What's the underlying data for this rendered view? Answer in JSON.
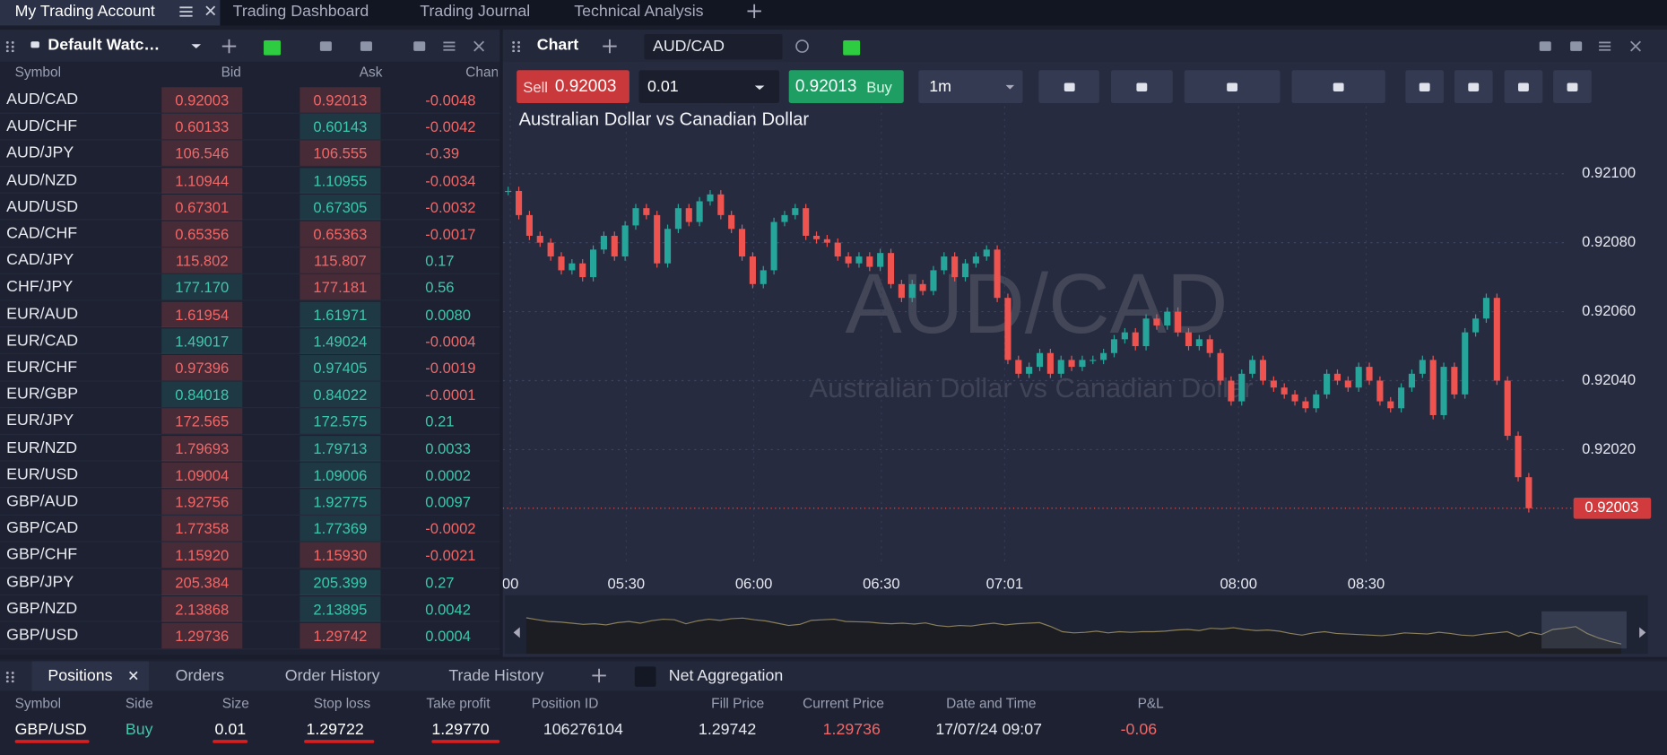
{
  "top_tabs": [
    "My Trading Account",
    "Trading Dashboard",
    "Trading Journal",
    "Technical Analysis"
  ],
  "watchlist": {
    "title": "Default Watc…",
    "columns": [
      "Symbol",
      "Bid",
      "Ask",
      "Change"
    ],
    "rows": [
      {
        "symbol": "AUD/CAD",
        "bid": "0.92003",
        "ask": "0.92013",
        "change": "-0.0048",
        "bid_up": false,
        "ask_up": false
      },
      {
        "symbol": "AUD/CHF",
        "bid": "0.60133",
        "ask": "0.60143",
        "change": "-0.0042",
        "bid_up": false,
        "ask_up": true
      },
      {
        "symbol": "AUD/JPY",
        "bid": "106.546",
        "ask": "106.555",
        "change": "-0.39",
        "bid_up": false,
        "ask_up": false
      },
      {
        "symbol": "AUD/NZD",
        "bid": "1.10944",
        "ask": "1.10955",
        "change": "-0.0034",
        "bid_up": false,
        "ask_up": true
      },
      {
        "symbol": "AUD/USD",
        "bid": "0.67301",
        "ask": "0.67305",
        "change": "-0.0032",
        "bid_up": false,
        "ask_up": true
      },
      {
        "symbol": "CAD/CHF",
        "bid": "0.65356",
        "ask": "0.65363",
        "change": "-0.0017",
        "bid_up": false,
        "ask_up": false
      },
      {
        "symbol": "CAD/JPY",
        "bid": "115.802",
        "ask": "115.807",
        "change": "0.17",
        "bid_up": false,
        "ask_up": false
      },
      {
        "symbol": "CHF/JPY",
        "bid": "177.170",
        "ask": "177.181",
        "change": "0.56",
        "bid_up": true,
        "ask_up": false
      },
      {
        "symbol": "EUR/AUD",
        "bid": "1.61954",
        "ask": "1.61971",
        "change": "0.0080",
        "bid_up": false,
        "ask_up": true
      },
      {
        "symbol": "EUR/CAD",
        "bid": "1.49017",
        "ask": "1.49024",
        "change": "-0.0004",
        "bid_up": true,
        "ask_up": true
      },
      {
        "symbol": "EUR/CHF",
        "bid": "0.97396",
        "ask": "0.97405",
        "change": "-0.0019",
        "bid_up": false,
        "ask_up": true
      },
      {
        "symbol": "EUR/GBP",
        "bid": "0.84018",
        "ask": "0.84022",
        "change": "-0.0001",
        "bid_up": true,
        "ask_up": true
      },
      {
        "symbol": "EUR/JPY",
        "bid": "172.565",
        "ask": "172.575",
        "change": "0.21",
        "bid_up": false,
        "ask_up": true
      },
      {
        "symbol": "EUR/NZD",
        "bid": "1.79693",
        "ask": "1.79713",
        "change": "0.0033",
        "bid_up": false,
        "ask_up": true
      },
      {
        "symbol": "EUR/USD",
        "bid": "1.09004",
        "ask": "1.09006",
        "change": "0.0002",
        "bid_up": false,
        "ask_up": true
      },
      {
        "symbol": "GBP/AUD",
        "bid": "1.92756",
        "ask": "1.92775",
        "change": "0.0097",
        "bid_up": false,
        "ask_up": true
      },
      {
        "symbol": "GBP/CAD",
        "bid": "1.77358",
        "ask": "1.77369",
        "change": "-0.0002",
        "bid_up": false,
        "ask_up": true
      },
      {
        "symbol": "GBP/CHF",
        "bid": "1.15920",
        "ask": "1.15930",
        "change": "-0.0021",
        "bid_up": false,
        "ask_up": false
      },
      {
        "symbol": "GBP/JPY",
        "bid": "205.384",
        "ask": "205.399",
        "change": "0.27",
        "bid_up": false,
        "ask_up": true
      },
      {
        "symbol": "GBP/NZD",
        "bid": "2.13868",
        "ask": "2.13895",
        "change": "0.0042",
        "bid_up": false,
        "ask_up": true
      },
      {
        "symbol": "GBP/USD",
        "bid": "1.29736",
        "ask": "1.29742",
        "change": "0.0004",
        "bid_up": false,
        "ask_up": false
      }
    ]
  },
  "chart": {
    "panel_title": "Chart",
    "symbol": "AUD/CAD",
    "sell_label": "Sell",
    "sell_price": "0.92003",
    "lot": "0.01",
    "buy_price": "0.92013",
    "buy_label": "Buy",
    "timeframe": "1m",
    "title": "Australian Dollar vs Canadian Dollar",
    "ylim": [
      0.91987,
      0.92118
    ],
    "yticks": [
      {
        "value": 0.921,
        "label": "0.92100"
      },
      {
        "value": 0.9208,
        "label": "0.92080"
      },
      {
        "value": 0.9206,
        "label": "0.92060"
      },
      {
        "value": 0.9204,
        "label": "0.92040"
      },
      {
        "value": 0.9202,
        "label": "0.92020"
      }
    ],
    "current_price": {
      "value": 0.92003,
      "label": "0.92003"
    },
    "time_labels": [
      "00",
      "05:30",
      "06:00",
      "06:30",
      "07:01",
      "08:00",
      "08:30"
    ],
    "closes": [
      0.92095,
      0.92088,
      0.92082,
      0.9208,
      0.92076,
      0.92072,
      0.92074,
      0.9207,
      0.92078,
      0.92082,
      0.92076,
      0.92085,
      0.9209,
      0.92088,
      0.92074,
      0.92084,
      0.9209,
      0.92086,
      0.92092,
      0.92094,
      0.92088,
      0.92084,
      0.92076,
      0.92068,
      0.92072,
      0.92086,
      0.92088,
      0.9209,
      0.92082,
      0.92081,
      0.9208,
      0.92076,
      0.92074,
      0.92076,
      0.92073,
      0.92077,
      0.92068,
      0.92064,
      0.92068,
      0.92066,
      0.92072,
      0.92076,
      0.9207,
      0.92074,
      0.92076,
      0.92078,
      0.92064,
      0.92046,
      0.92042,
      0.92044,
      0.92048,
      0.92042,
      0.92046,
      0.92044,
      0.92046,
      0.92046,
      0.92048,
      0.92052,
      0.92054,
      0.9205,
      0.92058,
      0.92056,
      0.9206,
      0.92054,
      0.9205,
      0.92052,
      0.92048,
      0.9204,
      0.92034,
      0.92042,
      0.92046,
      0.9204,
      0.92038,
      0.92036,
      0.92034,
      0.92032,
      0.92036,
      0.92042,
      0.9204,
      0.92038,
      0.92044,
      0.9204,
      0.92034,
      0.92032,
      0.92038,
      0.92042,
      0.92046,
      0.9203,
      0.92044,
      0.92036,
      0.92054,
      0.92058,
      0.92064,
      0.9204,
      0.92024,
      0.92012,
      0.92003
    ],
    "up_color": "#26a69a",
    "down_color": "#ef5350"
  },
  "bottom_tabs": [
    "Positions",
    "Orders",
    "Order History",
    "Trade History"
  ],
  "net_aggregation": "Net Aggregation",
  "positions": {
    "columns": [
      "Symbol",
      "Side",
      "Size",
      "Stop loss",
      "Take profit",
      "Position ID",
      "Fill Price",
      "Current Price",
      "Date and Time",
      "P&L"
    ],
    "rows": [
      [
        "GBP/USD",
        "Buy",
        "0.01",
        "1.29722",
        "1.29770",
        "106276104",
        "1.29742",
        "1.29736",
        "17/07/24 09:07",
        "-0.06"
      ]
    ]
  }
}
